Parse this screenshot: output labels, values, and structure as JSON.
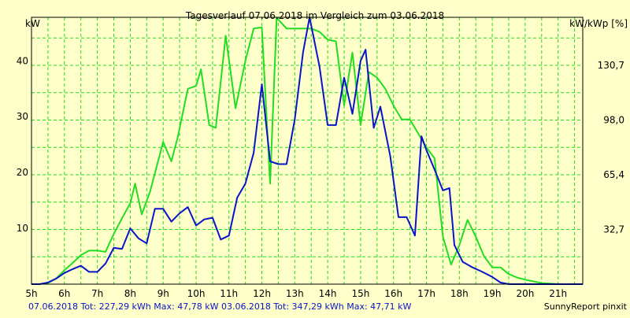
{
  "chart_data": {
    "type": "line",
    "title": "Tagesverlauf 07.06.2018 im Vergleich zum 03.06.2018",
    "ylabel_left": "kW",
    "ylabel_right": "kW/kWp [%]",
    "xlim": [
      5,
      21.75
    ],
    "ylim": [
      0,
      47.8
    ],
    "x_ticks": [
      {
        "x": 5,
        "label": "5h"
      },
      {
        "x": 6,
        "label": "6h"
      },
      {
        "x": 7,
        "label": "7h"
      },
      {
        "x": 8,
        "label": "8h"
      },
      {
        "x": 9,
        "label": "9h"
      },
      {
        "x": 10,
        "label": "10h"
      },
      {
        "x": 11,
        "label": "11h"
      },
      {
        "x": 12,
        "label": "12h"
      },
      {
        "x": 13,
        "label": "13h"
      },
      {
        "x": 14,
        "label": "14h"
      },
      {
        "x": 15,
        "label": "15h"
      },
      {
        "x": 16,
        "label": "16h"
      },
      {
        "x": 17,
        "label": "17h"
      },
      {
        "x": 18,
        "label": "18h"
      },
      {
        "x": 19,
        "label": "19h"
      },
      {
        "x": 20,
        "label": "20h"
      },
      {
        "x": 21,
        "label": "21h"
      }
    ],
    "x_grid": [
      5,
      5.5,
      6,
      6.5,
      7,
      7.5,
      8,
      8.5,
      9,
      9.5,
      10,
      10.5,
      11,
      11.5,
      12,
      12.5,
      13,
      13.5,
      14,
      14.5,
      15,
      15.5,
      16,
      16.5,
      17,
      17.5,
      18,
      18.5,
      19,
      19.5,
      20,
      20.5,
      21,
      21.5
    ],
    "y_ticks_left": [
      {
        "y": 10,
        "label": "10"
      },
      {
        "y": 20,
        "label": "20"
      },
      {
        "y": 30,
        "label": "30"
      },
      {
        "y": 40,
        "label": "40"
      }
    ],
    "y_ticks_right": [
      {
        "y": 9.8,
        "label": "32,7"
      },
      {
        "y": 19.6,
        "label": "65,4"
      },
      {
        "y": 29.4,
        "label": "98,0"
      },
      {
        "y": 39.2,
        "label": "130,7"
      }
    ],
    "y_grid": [
      4.9,
      9.8,
      14.7,
      19.6,
      24.5,
      29.4,
      34.3,
      39.2,
      44.1
    ],
    "grid": true,
    "series": [
      {
        "name": "03.06.2018",
        "color": "#22dd22",
        "points": [
          [
            5.0,
            0
          ],
          [
            5.25,
            0
          ],
          [
            5.5,
            0.2
          ],
          [
            5.75,
            1.0
          ],
          [
            6.0,
            2.5
          ],
          [
            6.25,
            3.8
          ],
          [
            6.5,
            5.2
          ],
          [
            6.75,
            6.0
          ],
          [
            7.0,
            6.0
          ],
          [
            7.25,
            5.8
          ],
          [
            7.5,
            9.0
          ],
          [
            7.75,
            11.8
          ],
          [
            8.0,
            14.5
          ],
          [
            8.15,
            18.0
          ],
          [
            8.35,
            12.5
          ],
          [
            8.6,
            16.5
          ],
          [
            8.8,
            21.0
          ],
          [
            9.0,
            25.5
          ],
          [
            9.25,
            22.0
          ],
          [
            9.45,
            26.5
          ],
          [
            9.75,
            35.0
          ],
          [
            10.0,
            35.5
          ],
          [
            10.15,
            38.5
          ],
          [
            10.4,
            28.5
          ],
          [
            10.6,
            28.0
          ],
          [
            10.9,
            44.5
          ],
          [
            11.2,
            31.5
          ],
          [
            11.5,
            40.0
          ],
          [
            11.75,
            45.8
          ],
          [
            12.0,
            46.0
          ],
          [
            12.25,
            18.0
          ],
          [
            12.45,
            47.7
          ],
          [
            12.75,
            45.8
          ],
          [
            13.0,
            45.8
          ],
          [
            13.5,
            45.8
          ],
          [
            13.75,
            45.2
          ],
          [
            14.0,
            43.8
          ],
          [
            14.25,
            43.5
          ],
          [
            14.5,
            32.0
          ],
          [
            14.75,
            41.5
          ],
          [
            15.0,
            28.5
          ],
          [
            15.25,
            38.0
          ],
          [
            15.5,
            37.0
          ],
          [
            15.75,
            35.0
          ],
          [
            16.0,
            32.0
          ],
          [
            16.25,
            29.5
          ],
          [
            16.5,
            29.5
          ],
          [
            16.75,
            27.0
          ],
          [
            17.0,
            24.5
          ],
          [
            17.25,
            22.5
          ],
          [
            17.5,
            8.5
          ],
          [
            17.75,
            3.5
          ],
          [
            18.0,
            7.0
          ],
          [
            18.25,
            11.5
          ],
          [
            18.5,
            8.5
          ],
          [
            18.75,
            5.0
          ],
          [
            19.0,
            3.0
          ],
          [
            19.25,
            3.0
          ],
          [
            19.5,
            1.8
          ],
          [
            19.75,
            1.2
          ],
          [
            20.0,
            0.8
          ],
          [
            20.5,
            0.2
          ],
          [
            21.0,
            0
          ],
          [
            21.75,
            0
          ]
        ]
      },
      {
        "name": "07.06.2018",
        "color": "#0a14c8",
        "points": [
          [
            5.0,
            0
          ],
          [
            5.25,
            0
          ],
          [
            5.5,
            0.3
          ],
          [
            5.75,
            1.0
          ],
          [
            6.0,
            2.0
          ],
          [
            6.25,
            2.7
          ],
          [
            6.5,
            3.3
          ],
          [
            6.75,
            2.2
          ],
          [
            7.0,
            2.2
          ],
          [
            7.25,
            3.7
          ],
          [
            7.5,
            6.5
          ],
          [
            7.75,
            6.3
          ],
          [
            8.0,
            10.0
          ],
          [
            8.25,
            8.2
          ],
          [
            8.5,
            7.3
          ],
          [
            8.75,
            13.5
          ],
          [
            9.0,
            13.5
          ],
          [
            9.25,
            11.2
          ],
          [
            9.5,
            12.7
          ],
          [
            9.75,
            13.8
          ],
          [
            10.0,
            10.5
          ],
          [
            10.25,
            11.6
          ],
          [
            10.5,
            11.9
          ],
          [
            10.75,
            8.0
          ],
          [
            11.0,
            8.7
          ],
          [
            11.25,
            15.5
          ],
          [
            11.5,
            18.0
          ],
          [
            11.75,
            23.5
          ],
          [
            12.0,
            35.8
          ],
          [
            12.25,
            22.0
          ],
          [
            12.5,
            21.5
          ],
          [
            12.75,
            21.5
          ],
          [
            13.0,
            29.5
          ],
          [
            13.25,
            41.5
          ],
          [
            13.45,
            47.8
          ],
          [
            13.75,
            39.0
          ],
          [
            14.0,
            28.5
          ],
          [
            14.25,
            28.5
          ],
          [
            14.5,
            37.0
          ],
          [
            14.75,
            30.5
          ],
          [
            15.0,
            40.0
          ],
          [
            15.15,
            42.0
          ],
          [
            15.4,
            28.0
          ],
          [
            15.6,
            31.8
          ],
          [
            15.9,
            23.0
          ],
          [
            16.15,
            12.0
          ],
          [
            16.4,
            12.0
          ],
          [
            16.65,
            8.7
          ],
          [
            16.85,
            26.5
          ],
          [
            17.0,
            24.0
          ],
          [
            17.25,
            20.5
          ],
          [
            17.5,
            16.8
          ],
          [
            17.7,
            17.2
          ],
          [
            17.85,
            7.0
          ],
          [
            18.1,
            4.0
          ],
          [
            18.4,
            3.0
          ],
          [
            18.7,
            2.2
          ],
          [
            19.0,
            1.3
          ],
          [
            19.25,
            0.3
          ],
          [
            19.5,
            0
          ],
          [
            21.75,
            0
          ]
        ]
      }
    ]
  },
  "footer": {
    "left": "07.06.2018 Tot: 227,29 kWh Max: 47,78 kW 03.06.2018 Tot: 347,29 kWh Max: 47,71 kW",
    "right": "SunnyReport pinxit"
  }
}
